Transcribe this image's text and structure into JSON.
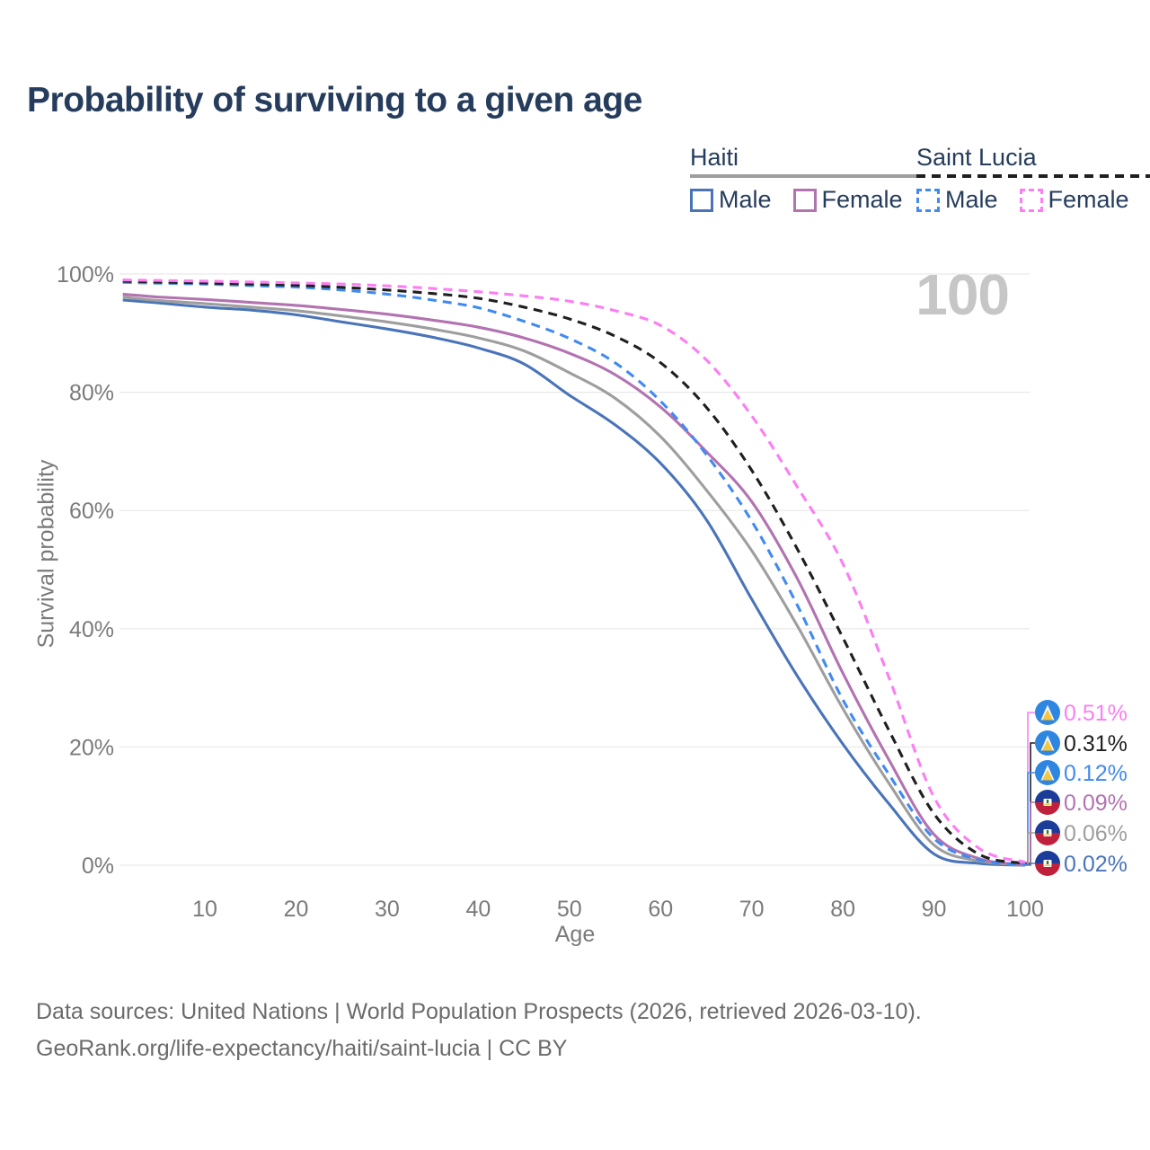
{
  "title": "Probability of surviving to a given age",
  "watermark": "100",
  "legend": {
    "groups": [
      {
        "label": "Haiti",
        "line_style": "solid",
        "underline_color": "#9e9e9e",
        "items": [
          {
            "label": "Male",
            "color": "#4a74b9"
          },
          {
            "label": "Female",
            "color": "#b273b0"
          }
        ]
      },
      {
        "label": "Saint Lucia",
        "line_style": "dashed",
        "underline_color": "#1f1f1f",
        "items": [
          {
            "label": "Male",
            "color": "#418af2"
          },
          {
            "label": "Female",
            "color": "#fb7ef2"
          }
        ]
      }
    ]
  },
  "chart_data": {
    "type": "line",
    "title": "Probability of surviving to a given age",
    "xlabel": "Age",
    "ylabel": "Survival probability",
    "xlim": [
      1,
      100
    ],
    "ylim": [
      0,
      100
    ],
    "grid": "horizontal",
    "legend_position": "top-right",
    "x_ticks": [
      10,
      20,
      30,
      40,
      50,
      60,
      70,
      80,
      90,
      100
    ],
    "y_ticks": [
      "0%",
      "20%",
      "40%",
      "60%",
      "80%",
      "100%"
    ],
    "x": [
      1,
      5,
      10,
      15,
      20,
      25,
      30,
      35,
      40,
      45,
      50,
      55,
      60,
      65,
      70,
      75,
      80,
      85,
      90,
      95,
      100
    ],
    "series": [
      {
        "name": "Saint Lucia Female",
        "country": "Saint Lucia",
        "sex": "Female",
        "color": "#fb7ef2",
        "dashed": true,
        "flag": "saint-lucia",
        "end_label": "0.51%",
        "values": [
          99.0,
          98.9,
          98.8,
          98.65,
          98.5,
          98.3,
          98.0,
          97.55,
          97.0,
          96.3,
          95.4,
          93.8,
          91.3,
          85.5,
          76.0,
          64.0,
          51.0,
          32.0,
          11.5,
          2.8,
          0.51
        ]
      },
      {
        "name": "Saint Lucia Total",
        "country": "Saint Lucia",
        "sex": "Both",
        "color": "#1f1f1f",
        "dashed": true,
        "flag": "saint-lucia",
        "end_label": "0.31%",
        "values": [
          98.8,
          98.65,
          98.5,
          98.3,
          98.1,
          97.75,
          97.3,
          96.7,
          95.9,
          94.4,
          92.4,
          89.5,
          85.0,
          77.5,
          66.8,
          53.5,
          38.5,
          23.0,
          8.7,
          1.8,
          0.31
        ]
      },
      {
        "name": "Saint Lucia Male",
        "country": "Saint Lucia",
        "sex": "Male",
        "color": "#418af2",
        "dashed": true,
        "flag": "saint-lucia",
        "end_label": "0.12%",
        "values": [
          98.6,
          98.45,
          98.3,
          98.05,
          97.8,
          97.3,
          96.6,
          95.6,
          94.3,
          92.0,
          89.1,
          85.0,
          78.5,
          69.5,
          58.2,
          44.0,
          28.0,
          15.5,
          4.5,
          0.9,
          0.12
        ]
      },
      {
        "name": "Haiti Female",
        "country": "Haiti",
        "sex": "Female",
        "color": "#b273b0",
        "dashed": false,
        "flag": "haiti",
        "end_label": "0.09%",
        "values": [
          96.6,
          96.1,
          95.7,
          95.2,
          94.7,
          94.0,
          93.2,
          92.2,
          91.0,
          89.2,
          86.6,
          83.0,
          77.5,
          70.0,
          61.5,
          48.5,
          32.5,
          18.0,
          5.2,
          1.1,
          0.09
        ]
      },
      {
        "name": "Haiti Total",
        "country": "Haiti",
        "sex": "Both",
        "color": "#9e9e9e",
        "dashed": false,
        "flag": "haiti",
        "end_label": "0.06%",
        "values": [
          96.1,
          95.5,
          95.0,
          94.4,
          93.8,
          92.9,
          91.9,
          90.7,
          89.2,
          87.0,
          83.3,
          79.0,
          72.5,
          63.5,
          53.2,
          40.5,
          26.5,
          14.0,
          3.4,
          0.7,
          0.06
        ]
      },
      {
        "name": "Haiti Male",
        "country": "Haiti",
        "sex": "Male",
        "color": "#4a74b9",
        "dashed": false,
        "flag": "haiti",
        "end_label": "0.02%",
        "values": [
          95.6,
          95.1,
          94.4,
          93.9,
          93.1,
          91.9,
          90.7,
          89.3,
          87.5,
          84.8,
          79.5,
          74.5,
          68.0,
          58.5,
          45.0,
          32.0,
          20.5,
          10.5,
          1.9,
          0.3,
          0.02
        ]
      }
    ]
  },
  "footer": {
    "line1": "Data sources: United Nations | World Population Prospects (2026, retrieved 2026-03-10).",
    "line2": "GeoRank.org/life-expectancy/haiti/saint-lucia | CC BY"
  }
}
